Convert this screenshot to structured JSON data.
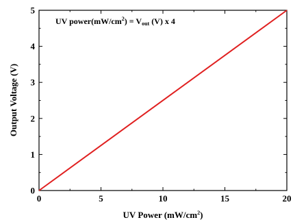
{
  "chart_data": {
    "type": "line",
    "title": "",
    "xlabel": "UV Power (mW/cm",
    "xlabel_sup": "2",
    "xlabel_end": ")",
    "ylabel": "Output Voltage (V)",
    "xlim": [
      0,
      20
    ],
    "ylim": [
      0,
      5
    ],
    "xticks": [
      0,
      5,
      10,
      15,
      20
    ],
    "yticks": [
      0,
      1,
      2,
      3,
      4,
      5
    ],
    "xtick_labels": [
      "0",
      "5",
      "10",
      "15",
      "20"
    ],
    "ytick_labels": [
      "0",
      "1",
      "2",
      "3",
      "4",
      "5"
    ],
    "grid": false,
    "series": [
      {
        "x": [
          0,
          20
        ],
        "y": [
          0,
          5
        ],
        "color": "#e02020"
      }
    ],
    "annotation": {
      "part1": "UV power(mW/cm",
      "sup": "2",
      "part2": ") = V",
      "sub": "out",
      "part3": " (V) x 4"
    }
  }
}
